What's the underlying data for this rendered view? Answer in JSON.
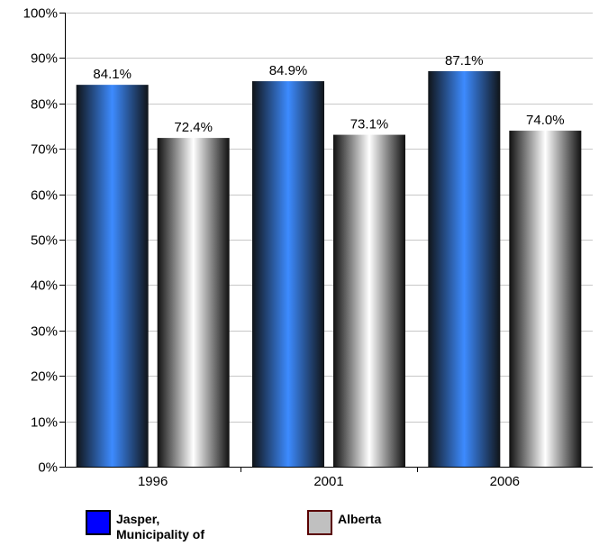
{
  "chart_data": {
    "type": "bar",
    "title": "",
    "xlabel": "",
    "ylabel": "",
    "categories": [
      "1996",
      "2001",
      "2006"
    ],
    "series": [
      {
        "name": "Jasper, Municipality of",
        "values": [
          84.1,
          84.9,
          87.1
        ],
        "labels": [
          "84.1%",
          "84.9%",
          "87.1%"
        ],
        "color": "#3d8bff",
        "swatch": "#0000ff",
        "swatch_border": "#000000"
      },
      {
        "name": "Alberta",
        "values": [
          72.4,
          73.1,
          74.0
        ],
        "labels": [
          "72.4%",
          "73.1%",
          "74.0%"
        ],
        "color": "#ffffff",
        "swatch": "#c0c0c0",
        "swatch_border": "#5a0000"
      }
    ],
    "ylim": [
      0,
      100
    ],
    "yticks": [
      0,
      10,
      20,
      30,
      40,
      50,
      60,
      70,
      80,
      90,
      100
    ],
    "ytick_labels": [
      "0%",
      "10%",
      "20%",
      "30%",
      "40%",
      "50%",
      "60%",
      "70%",
      "80%",
      "90%",
      "100%"
    ],
    "grid": true,
    "legend_position": "bottom"
  }
}
